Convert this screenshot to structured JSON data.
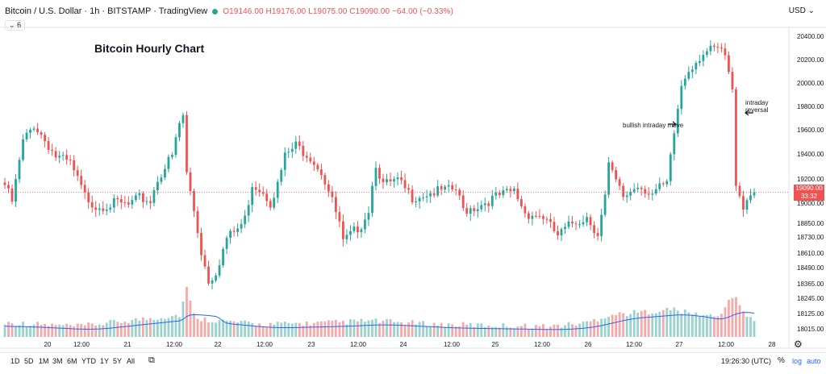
{
  "header": {
    "symbol": "Bitcoin / U.S. Dollar · 1h · BITSTAMP · TradingView",
    "ohlc": "O19146.00 H19176.00 L19075.00 C19090.00 −64.00 (−0.33%)",
    "indicator_badge": "6",
    "currency": "USD"
  },
  "colors": {
    "up": "#26a69a",
    "down": "#ef5350",
    "vol_up": "#9ad3cd",
    "vol_down": "#f5a9a8",
    "ma_line": "#2962ff",
    "accent": "#2962ff"
  },
  "price_tag": {
    "price": "19090.00",
    "countdown": "33:32"
  },
  "annotations": {
    "bullish": "bullish intraday move",
    "reversal": "intraday reversal"
  },
  "bottom": {
    "ranges": [
      "1D",
      "5D",
      "1M",
      "3M",
      "6M",
      "YTD",
      "1Y",
      "5Y",
      "All"
    ],
    "clock": "19:26:30 (UTC)",
    "percent": "%",
    "log": "log",
    "auto": "auto"
  },
  "chart_data": {
    "type": "candlestick",
    "title": "Bitcoin Hourly Chart",
    "y_ticks": [
      20400,
      20200,
      20000,
      19800,
      19600,
      19400,
      19200,
      19000,
      18850,
      18730,
      18610,
      18490,
      18365,
      18245,
      18125,
      18015
    ],
    "x_ticks": [
      "20",
      "12:00",
      "21",
      "12:00",
      "22",
      "12:00",
      "23",
      "12:00",
      "24",
      "12:00",
      "25",
      "12:00",
      "26",
      "12:00",
      "27",
      "12:00",
      "28"
    ],
    "last_price": 19090,
    "close_keypoints": [
      [
        0,
        19150
      ],
      [
        2,
        19010
      ],
      [
        5,
        19500
      ],
      [
        8,
        19640
      ],
      [
        10,
        19560
      ],
      [
        14,
        19380
      ],
      [
        18,
        19320
      ],
      [
        22,
        19060
      ],
      [
        25,
        18980
      ],
      [
        28,
        18990
      ],
      [
        31,
        19000
      ],
      [
        34,
        18980
      ],
      [
        37,
        19040
      ],
      [
        40,
        19020
      ],
      [
        42,
        19200
      ],
      [
        45,
        19340
      ],
      [
        46,
        19380
      ],
      [
        48,
        19650
      ],
      [
        49,
        19720
      ],
      [
        50,
        19240
      ],
      [
        52,
        18950
      ],
      [
        54,
        18620
      ],
      [
        56,
        18390
      ],
      [
        58,
        18460
      ],
      [
        61,
        18720
      ],
      [
        64,
        18800
      ],
      [
        66,
        18880
      ],
      [
        68,
        19160
      ],
      [
        71,
        19100
      ],
      [
        73,
        19010
      ],
      [
        75,
        19150
      ],
      [
        77,
        19380
      ],
      [
        80,
        19470
      ],
      [
        84,
        19380
      ],
      [
        87,
        19260
      ],
      [
        89,
        19100
      ],
      [
        92,
        18840
      ],
      [
        93,
        18680
      ],
      [
        96,
        18780
      ],
      [
        98,
        18840
      ],
      [
        100,
        18960
      ],
      [
        102,
        19330
      ],
      [
        104,
        19150
      ],
      [
        108,
        19180
      ],
      [
        112,
        19050
      ],
      [
        116,
        19080
      ],
      [
        120,
        19100
      ],
      [
        124,
        19110
      ],
      [
        126,
        18950
      ],
      [
        130,
        18980
      ],
      [
        135,
        19050
      ],
      [
        140,
        19100
      ],
      [
        143,
        18930
      ],
      [
        148,
        18900
      ],
      [
        152,
        18740
      ],
      [
        156,
        18850
      ],
      [
        160,
        18900
      ],
      [
        163,
        18760
      ],
      [
        165,
        19050
      ],
      [
        166,
        19300
      ],
      [
        170,
        19050
      ],
      [
        174,
        19150
      ],
      [
        178,
        19080
      ],
      [
        180,
        19120
      ],
      [
        182,
        19150
      ],
      [
        184,
        19570
      ],
      [
        186,
        19980
      ],
      [
        188,
        20120
      ],
      [
        192,
        20260
      ],
      [
        196,
        20290
      ],
      [
        198,
        20230
      ],
      [
        200,
        19920
      ],
      [
        201,
        19180
      ],
      [
        203,
        18980
      ],
      [
        205,
        19080
      ],
      [
        206,
        19090
      ]
    ],
    "volume_keypoints": [
      [
        0,
        0.3
      ],
      [
        20,
        0.2
      ],
      [
        48,
        0.5
      ],
      [
        49,
        0.85
      ],
      [
        50,
        1.2
      ],
      [
        52,
        0.5
      ],
      [
        54,
        0.4
      ],
      [
        70,
        0.25
      ],
      [
        90,
        0.3
      ],
      [
        100,
        0.35
      ],
      [
        120,
        0.25
      ],
      [
        150,
        0.2
      ],
      [
        160,
        0.3
      ],
      [
        166,
        0.5
      ],
      [
        184,
        0.65
      ],
      [
        188,
        0.55
      ],
      [
        196,
        0.45
      ],
      [
        200,
        1.0
      ],
      [
        201,
        0.9
      ],
      [
        204,
        0.5
      ],
      [
        206,
        0.3
      ]
    ]
  }
}
